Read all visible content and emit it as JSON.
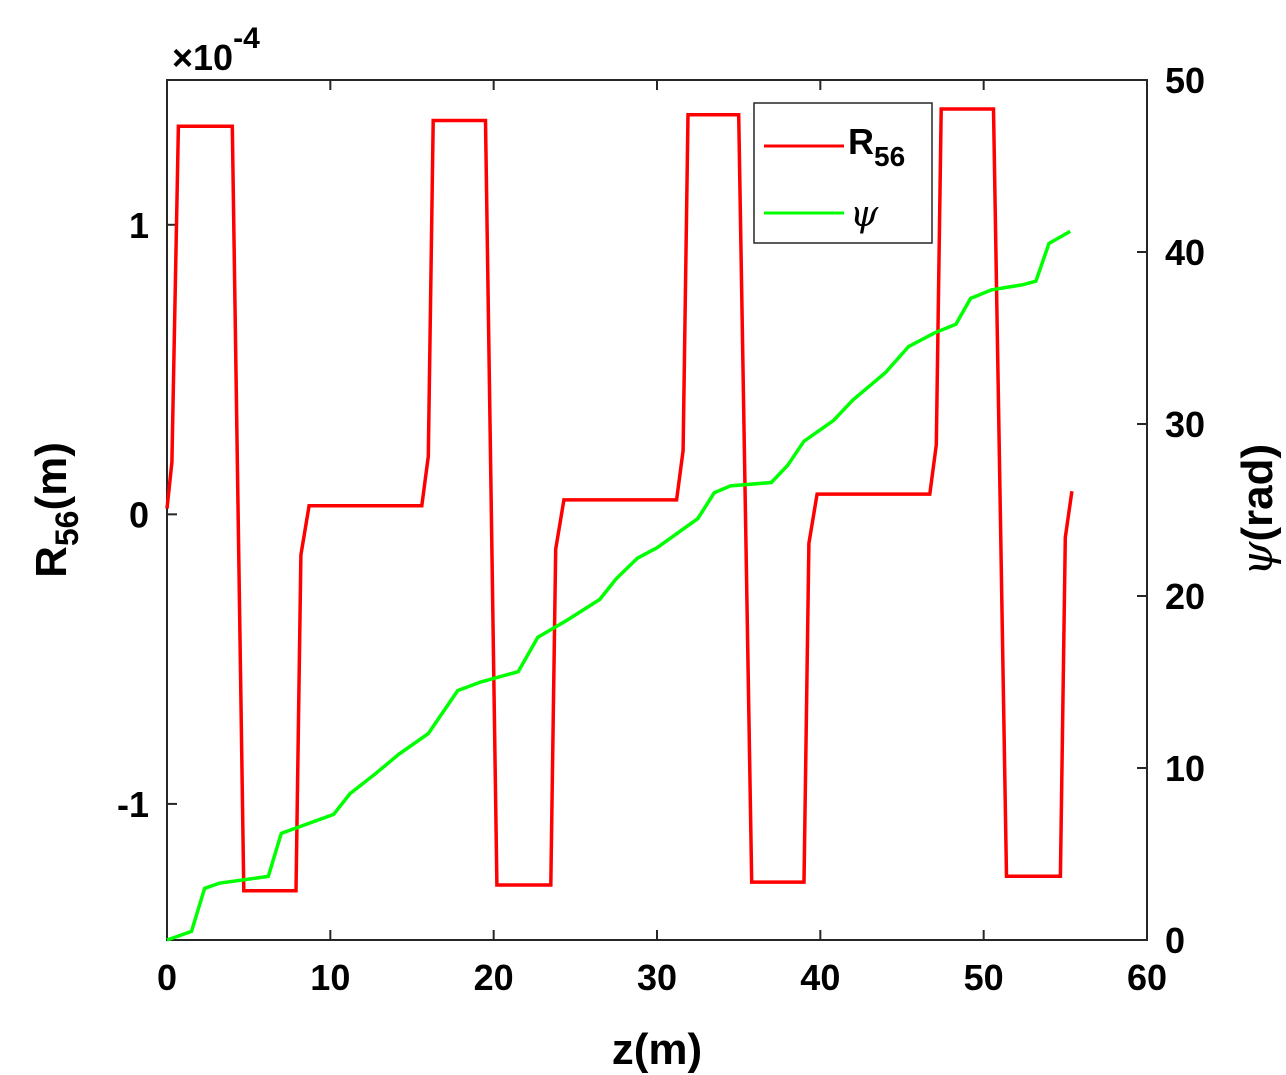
{
  "chart_data": {
    "type": "line",
    "title": "",
    "xlabel": "z(m)",
    "ylabel_left": {
      "main": "R",
      "sub": "56",
      "suffix": "(m)"
    },
    "ylabel_right": {
      "symbol": "ψ",
      "suffix": "(rad)"
    },
    "exponent_label": {
      "prefix": "×10",
      "sup": "-4"
    },
    "xlim": [
      0,
      60
    ],
    "ylim_left": [
      -1.47,
      1.5
    ],
    "ylim_right": [
      0,
      50
    ],
    "left_scale": 0.0001,
    "xticks": [
      0,
      10,
      20,
      30,
      40,
      50,
      60
    ],
    "xtick_labels": [
      "0",
      "10",
      "20",
      "30",
      "40",
      "50",
      "60"
    ],
    "yticks_left": [
      -1,
      0,
      1
    ],
    "ytick_labels_left": [
      "-1",
      "0",
      "1"
    ],
    "yticks_right": [
      0,
      10,
      20,
      30,
      40,
      50
    ],
    "ytick_labels_right": [
      "0",
      "10",
      "20",
      "30",
      "40",
      "50"
    ],
    "grid": false,
    "legend_position": "top-right",
    "series": [
      {
        "name": "R56",
        "legend": {
          "main": "R",
          "sub": "56"
        },
        "axis": "left",
        "color": "#ff0000",
        "x": [
          0,
          0.3,
          0.7,
          4.0,
          4.7,
          7.9,
          8.2,
          8.7,
          15.6,
          16.0,
          16.3,
          19.5,
          20.2,
          23.5,
          23.8,
          24.3,
          31.2,
          31.6,
          31.9,
          35.0,
          35.8,
          39.0,
          39.3,
          39.8,
          46.7,
          47.1,
          47.4,
          50.6,
          51.4,
          54.7,
          55.0,
          55.4
        ],
        "y": [
          0.02,
          0.18,
          1.34,
          1.34,
          -1.3,
          -1.3,
          -0.14,
          0.03,
          0.03,
          0.2,
          1.36,
          1.36,
          -1.28,
          -1.28,
          -0.12,
          0.05,
          0.05,
          0.22,
          1.38,
          1.38,
          -1.27,
          -1.27,
          -0.1,
          0.07,
          0.07,
          0.24,
          1.4,
          1.4,
          -1.25,
          -1.25,
          -0.08,
          0.08
        ]
      },
      {
        "name": "ψ",
        "legend": {
          "main": "ψ",
          "sub": ""
        },
        "axis": "right",
        "color": "#00ff00",
        "x": [
          0,
          1.5,
          2.3,
          3.2,
          6.2,
          7.0,
          10.2,
          11.2,
          12.8,
          14.2,
          16.0,
          17.8,
          19.2,
          21.5,
          22.7,
          24.5,
          26.5,
          27.5,
          28.8,
          30.0,
          32.5,
          33.5,
          34.5,
          37.0,
          38.0,
          39.0,
          40.8,
          42.0,
          44.0,
          45.4,
          47.0,
          48.3,
          49.2,
          50.5,
          52.4,
          53.2,
          54.0,
          55.3
        ],
        "y": [
          0,
          0.5,
          3.0,
          3.3,
          3.7,
          6.2,
          7.3,
          8.5,
          9.7,
          10.8,
          12.0,
          14.5,
          15.0,
          15.6,
          17.6,
          18.6,
          19.8,
          21.0,
          22.2,
          22.8,
          24.5,
          26.0,
          26.4,
          26.6,
          27.6,
          29.0,
          30.2,
          31.4,
          33.0,
          34.5,
          35.3,
          35.8,
          37.3,
          37.8,
          38.1,
          38.3,
          40.5,
          41.2
        ]
      }
    ]
  }
}
